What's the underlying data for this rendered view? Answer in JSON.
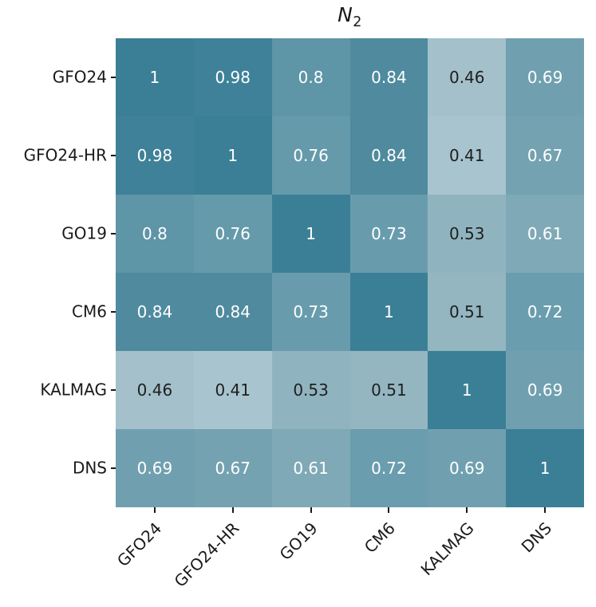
{
  "figure": {
    "title": {
      "main": "N",
      "subscript": "2"
    }
  },
  "chart_data": {
    "type": "heatmap",
    "title": "N_2",
    "categories": [
      "GFO24",
      "GFO24-HR",
      "GO19",
      "CM6",
      "KALMAG",
      "DNS"
    ],
    "rows": [
      "GFO24",
      "GFO24-HR",
      "GO19",
      "CM6",
      "KALMAG",
      "DNS"
    ],
    "matrix": [
      [
        1.0,
        0.98,
        0.8,
        0.84,
        0.46,
        0.69
      ],
      [
        0.98,
        1.0,
        0.76,
        0.84,
        0.41,
        0.67
      ],
      [
        0.8,
        0.76,
        1.0,
        0.73,
        0.53,
        0.61
      ],
      [
        0.84,
        0.84,
        0.73,
        1.0,
        0.51,
        0.72
      ],
      [
        0.46,
        0.41,
        0.53,
        0.51,
        1.0,
        0.69
      ],
      [
        0.69,
        0.67,
        0.61,
        0.72,
        0.69,
        1.0
      ]
    ],
    "cell_labels": [
      [
        "1",
        "0.98",
        "0.8",
        "0.84",
        "0.46",
        "0.69"
      ],
      [
        "0.98",
        "1",
        "0.76",
        "0.84",
        "0.41",
        "0.67"
      ],
      [
        "0.8",
        "0.76",
        "1",
        "0.73",
        "0.53",
        "0.61"
      ],
      [
        "0.84",
        "0.84",
        "0.73",
        "1",
        "0.51",
        "0.72"
      ],
      [
        "0.46",
        "0.41",
        "0.53",
        "0.51",
        "1",
        "0.69"
      ],
      [
        "0.69",
        "0.67",
        "0.61",
        "0.72",
        "0.69",
        "1"
      ]
    ],
    "value_range": {
      "vmin": 0.41,
      "vmax": 1.0
    },
    "colormap": {
      "1": "#3b7f96",
      "0.98": "#3e8198",
      "0.84": "#4f8a9e",
      "0.8": "#5e95a7",
      "0.76": "#659aab",
      "0.73": "#689cad",
      "0.72": "#6a9dae",
      "0.69": "#70a0b0",
      "0.67": "#74a2b1",
      "0.61": "#7fa9b6",
      "0.53": "#90b4bf",
      "0.51": "#93b6c1",
      "0.46": "#a3c0cb",
      "0.41": "#a8c4ce"
    },
    "annotation_text_colors": {
      "light": "#ffffff",
      "dark": "#1f1f1f",
      "white_text_min_value": 0.57
    },
    "axis": {
      "tick_color": "#1a1a1a",
      "label_color": "#1a1a1a",
      "x_label_rotation_deg": 45,
      "grid": false,
      "legend": false
    }
  }
}
